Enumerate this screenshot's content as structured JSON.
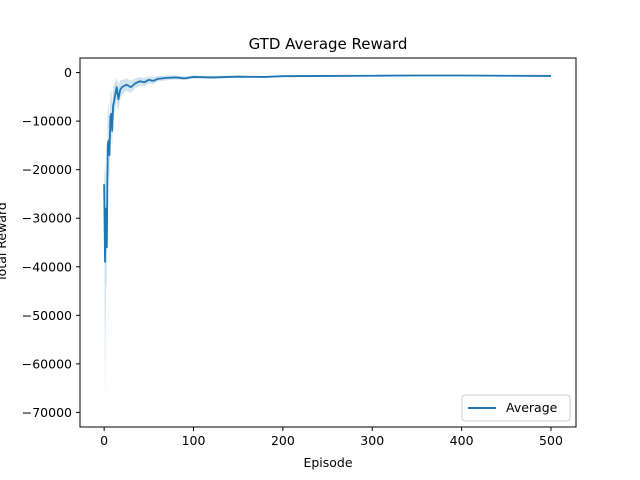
{
  "chart_data": {
    "type": "line",
    "title": "GTD Average Reward",
    "xlabel": "Episode",
    "ylabel": "Total Reward",
    "xlim": [
      -27,
      528
    ],
    "ylim": [
      -73000,
      3000
    ],
    "xticks": [
      0,
      100,
      200,
      300,
      400,
      500
    ],
    "xtick_labels": [
      "0",
      "100",
      "200",
      "300",
      "400",
      "500"
    ],
    "yticks": [
      0,
      -10000,
      -20000,
      -30000,
      -40000,
      -50000,
      -60000,
      -70000
    ],
    "ytick_labels": [
      "0",
      "−10000",
      "−20000",
      "−30000",
      "−40000",
      "−50000",
      "−60000",
      "−70000"
    ],
    "grid": false,
    "legend_position": "lower-right",
    "series": [
      {
        "name": "Average",
        "color": "#1f77b4",
        "band_color": "#1f77b4",
        "points": [
          [
            0,
            -23000
          ],
          [
            1,
            -39000
          ],
          [
            2,
            -28000
          ],
          [
            3,
            -36000
          ],
          [
            4,
            -15000
          ],
          [
            5,
            -14000
          ],
          [
            6,
            -17000
          ],
          [
            7,
            -9000
          ],
          [
            8,
            -8500
          ],
          [
            9,
            -12000
          ],
          [
            10,
            -7000
          ],
          [
            12,
            -5000
          ],
          [
            14,
            -3000
          ],
          [
            16,
            -5500
          ],
          [
            18,
            -3500
          ],
          [
            20,
            -3000
          ],
          [
            25,
            -2500
          ],
          [
            30,
            -3000
          ],
          [
            35,
            -2200
          ],
          [
            40,
            -1800
          ],
          [
            45,
            -2000
          ],
          [
            50,
            -1500
          ],
          [
            55,
            -1700
          ],
          [
            60,
            -1300
          ],
          [
            70,
            -1100
          ],
          [
            80,
            -1000
          ],
          [
            90,
            -1200
          ],
          [
            100,
            -900
          ],
          [
            120,
            -1000
          ],
          [
            150,
            -850
          ],
          [
            180,
            -900
          ],
          [
            200,
            -750
          ],
          [
            250,
            -700
          ],
          [
            300,
            -650
          ],
          [
            350,
            -600
          ],
          [
            400,
            -600
          ],
          [
            450,
            -650
          ],
          [
            500,
            -700
          ]
        ],
        "band_lower": [
          [
            0,
            -28000
          ],
          [
            1,
            -68000
          ],
          [
            2,
            -45000
          ],
          [
            3,
            -43000
          ],
          [
            4,
            -24000
          ],
          [
            5,
            -21000
          ],
          [
            6,
            -22000
          ],
          [
            7,
            -14000
          ],
          [
            8,
            -13000
          ],
          [
            9,
            -15000
          ],
          [
            10,
            -10000
          ],
          [
            12,
            -8000
          ],
          [
            14,
            -6000
          ],
          [
            16,
            -8000
          ],
          [
            18,
            -5500
          ],
          [
            20,
            -4500
          ],
          [
            25,
            -3800
          ],
          [
            30,
            -4200
          ],
          [
            35,
            -3200
          ],
          [
            40,
            -2700
          ],
          [
            45,
            -2800
          ],
          [
            50,
            -2300
          ],
          [
            55,
            -2400
          ],
          [
            60,
            -1900
          ],
          [
            70,
            -1600
          ],
          [
            80,
            -1400
          ],
          [
            90,
            -1600
          ],
          [
            100,
            -1200
          ],
          [
            120,
            -1300
          ],
          [
            150,
            -1100
          ],
          [
            180,
            -1100
          ],
          [
            200,
            -950
          ],
          [
            250,
            -900
          ],
          [
            300,
            -850
          ],
          [
            350,
            -800
          ],
          [
            400,
            -800
          ],
          [
            450,
            -850
          ],
          [
            500,
            -900
          ]
        ],
        "band_upper": [
          [
            0,
            -19000
          ],
          [
            1,
            -22000
          ],
          [
            2,
            -18000
          ],
          [
            3,
            -25000
          ],
          [
            4,
            -8000
          ],
          [
            5,
            -6000
          ],
          [
            6,
            -10000
          ],
          [
            7,
            -4000
          ],
          [
            8,
            -3500
          ],
          [
            9,
            -6500
          ],
          [
            10,
            -3000
          ],
          [
            12,
            -2000
          ],
          [
            14,
            -1000
          ],
          [
            16,
            -2500
          ],
          [
            18,
            -1500
          ],
          [
            20,
            -1500
          ],
          [
            25,
            -1200
          ],
          [
            30,
            -1600
          ],
          [
            35,
            -1200
          ],
          [
            40,
            -900
          ],
          [
            45,
            -1100
          ],
          [
            50,
            -800
          ],
          [
            55,
            -1000
          ],
          [
            60,
            -700
          ],
          [
            70,
            -600
          ],
          [
            80,
            -600
          ],
          [
            90,
            -800
          ],
          [
            100,
            -600
          ],
          [
            120,
            -700
          ],
          [
            150,
            -600
          ],
          [
            180,
            -700
          ],
          [
            200,
            -550
          ],
          [
            250,
            -500
          ],
          [
            300,
            -450
          ],
          [
            350,
            -400
          ],
          [
            400,
            -400
          ],
          [
            450,
            -450
          ],
          [
            500,
            -500
          ]
        ]
      }
    ]
  }
}
